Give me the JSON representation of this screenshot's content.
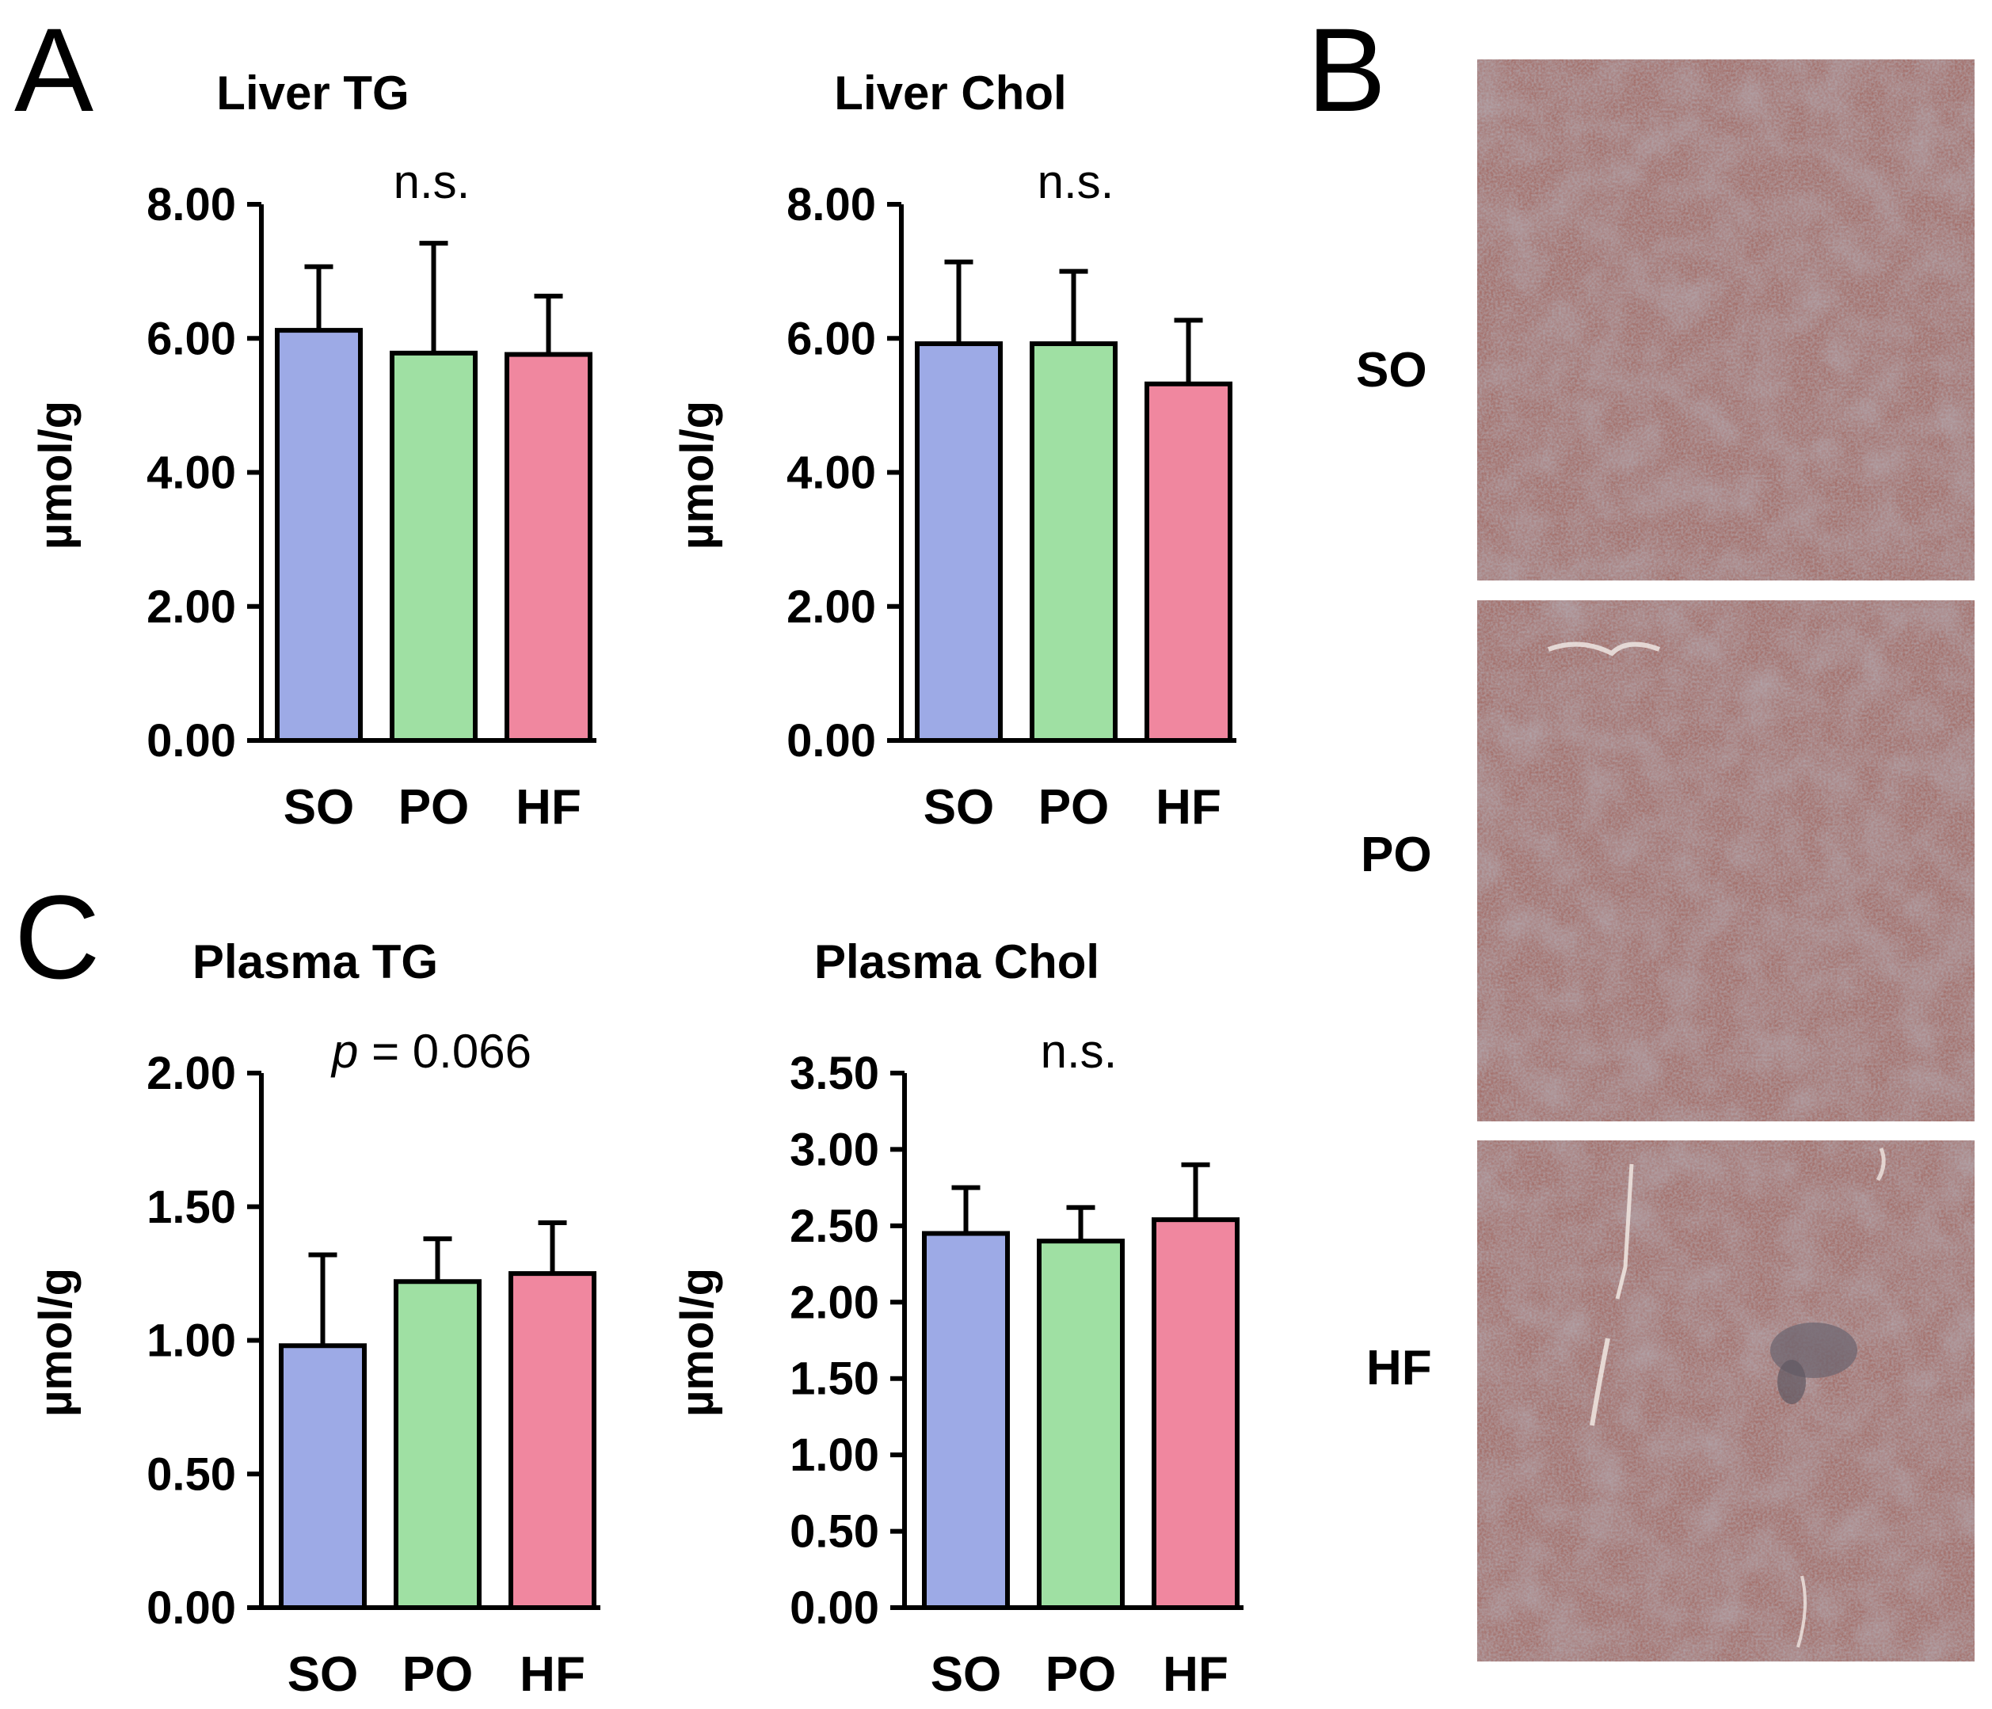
{
  "panel_labels": {
    "a": "A",
    "b": "B",
    "c": "C"
  },
  "colors": {
    "SO": "#9daae6",
    "PO": "#9fe0a3",
    "HF": "#f0879f",
    "tissue": "#a4706b"
  },
  "histology": {
    "labels": [
      "SO",
      "PO",
      "HF"
    ]
  },
  "chart_data": [
    {
      "type": "bar",
      "title": "Liver TG",
      "ylabel": "µmol/g",
      "categories": [
        "SO",
        "PO",
        "HF"
      ],
      "values": [
        6.12,
        5.78,
        5.76
      ],
      "errors": [
        0.95,
        1.64,
        0.87
      ],
      "ylim": [
        0,
        8
      ],
      "yticks": [
        "0.00",
        "2.00",
        "4.00",
        "6.00",
        "8.00"
      ],
      "annotation": "n.s."
    },
    {
      "type": "bar",
      "title": "Liver Chol",
      "ylabel": "µmol/g",
      "categories": [
        "SO",
        "PO",
        "HF"
      ],
      "values": [
        5.92,
        5.92,
        5.32
      ],
      "errors": [
        1.22,
        1.08,
        0.95
      ],
      "ylim": [
        0,
        8
      ],
      "yticks": [
        "0.00",
        "2.00",
        "4.00",
        "6.00",
        "8.00"
      ],
      "annotation": "n.s."
    },
    {
      "type": "bar",
      "title": "Plasma TG",
      "ylabel": "µmol/g",
      "categories": [
        "SO",
        "PO",
        "HF"
      ],
      "values": [
        0.98,
        1.22,
        1.25
      ],
      "errors": [
        0.34,
        0.16,
        0.19
      ],
      "ylim": [
        0,
        2
      ],
      "yticks": [
        "0.00",
        "0.50",
        "1.00",
        "1.50",
        "2.00"
      ],
      "annotation_p": "p",
      "annotation": " = 0.066"
    },
    {
      "type": "bar",
      "title": "Plasma Chol",
      "ylabel": "µmol/g",
      "categories": [
        "SO",
        "PO",
        "HF"
      ],
      "values": [
        2.45,
        2.4,
        2.54
      ],
      "errors": [
        0.3,
        0.22,
        0.36
      ],
      "ylim": [
        0,
        3.5
      ],
      "yticks": [
        "0.00",
        "0.50",
        "1.00",
        "1.50",
        "2.00",
        "2.50",
        "3.00",
        "3.50"
      ],
      "annotation": "n.s."
    }
  ]
}
